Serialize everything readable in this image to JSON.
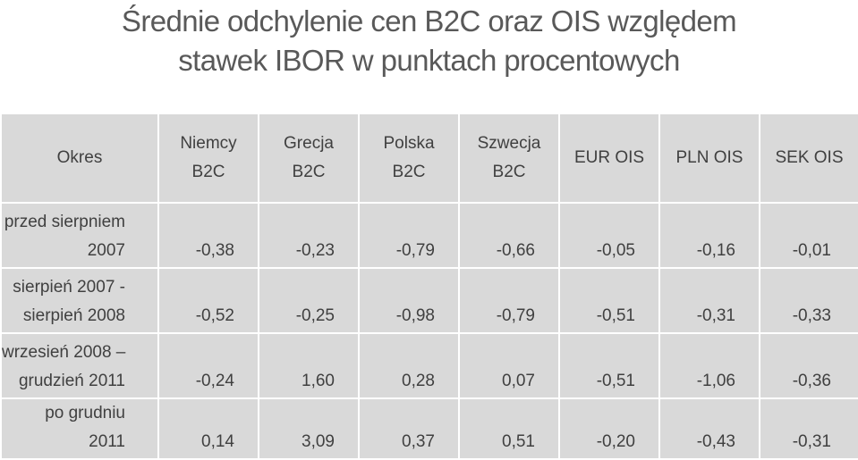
{
  "title": {
    "line1": "Średnie odchylenie cen B2C oraz OIS względem",
    "line2": "stawek IBOR w punktach procentowych"
  },
  "table": {
    "headers": [
      {
        "line1": "Okres",
        "line2": ""
      },
      {
        "line1": "Niemcy",
        "line2": "B2C"
      },
      {
        "line1": "Grecja",
        "line2": "B2C"
      },
      {
        "line1": "Polska",
        "line2": "B2C"
      },
      {
        "line1": "Szwecja",
        "line2": "B2C"
      },
      {
        "line1": "EUR OIS",
        "line2": ""
      },
      {
        "line1": "PLN OIS",
        "line2": ""
      },
      {
        "line1": "SEK OIS",
        "line2": ""
      }
    ],
    "rows": [
      {
        "period_line1": "przed sierpniem",
        "period_line2": "2007",
        "values": [
          "-0,38",
          "-0,23",
          "-0,79",
          "-0,66",
          "-0,05",
          "-0,16",
          "-0,01"
        ]
      },
      {
        "period_line1": "sierpień 2007 -",
        "period_line2": "sierpień 2008",
        "values": [
          "-0,52",
          "-0,25",
          "-0,98",
          "-0,79",
          "-0,51",
          "-0,31",
          "-0,33"
        ]
      },
      {
        "period_line1": "wrzesień 2008 –",
        "period_line2": "grudzień 2011",
        "values": [
          "-0,24",
          "1,60",
          "0,28",
          "0,07",
          "-0,51",
          "-1,06",
          "-0,36"
        ]
      },
      {
        "period_line1": "po grudniu",
        "period_line2": "2011",
        "values": [
          "0,14",
          "3,09",
          "0,37",
          "0,51",
          "-0,20",
          "-0,43",
          "-0,31"
        ]
      }
    ]
  }
}
